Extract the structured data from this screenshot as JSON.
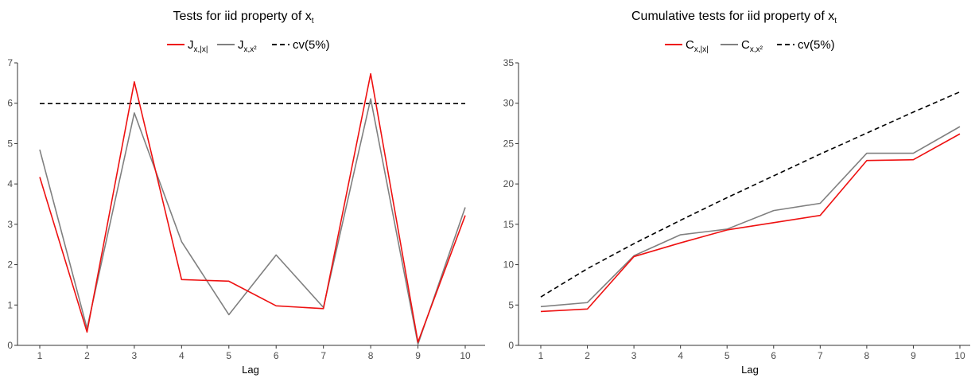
{
  "colors": {
    "series_1": "#ee1111",
    "series_2": "#808080",
    "cv": "#000000"
  },
  "chart_data": [
    {
      "type": "line",
      "title_main": "Tests for iid property of x",
      "title_sub": "t",
      "xlabel": "Lag",
      "ylabel": "",
      "x": [
        1,
        2,
        3,
        4,
        5,
        6,
        7,
        8,
        9,
        10
      ],
      "xlim": [
        1,
        10
      ],
      "ylim": [
        0,
        7
      ],
      "yticks": [
        0,
        1,
        2,
        3,
        4,
        5,
        6,
        7
      ],
      "grid": false,
      "legend_position": "top",
      "series": [
        {
          "name_main": "J",
          "name_sub": "x,|x|",
          "values": [
            4.17,
            0.33,
            6.53,
            1.63,
            1.59,
            0.98,
            0.91,
            6.73,
            0.08,
            3.22
          ]
        },
        {
          "name_main": "J",
          "name_sub": "x,x²",
          "values": [
            4.85,
            0.42,
            5.76,
            2.57,
            0.76,
            2.24,
            0.94,
            6.11,
            0.03,
            3.42
          ]
        },
        {
          "name_main": "cv(5%)",
          "name_sub": "",
          "values": [
            5.99,
            5.99,
            5.99,
            5.99,
            5.99,
            5.99,
            5.99,
            5.99,
            5.99,
            5.99
          ]
        }
      ]
    },
    {
      "type": "line",
      "title_main": "Cumulative tests for iid property of x",
      "title_sub": "t",
      "xlabel": "Lag",
      "ylabel": "",
      "x": [
        1,
        2,
        3,
        4,
        5,
        6,
        7,
        8,
        9,
        10
      ],
      "xlim": [
        1,
        10
      ],
      "ylim": [
        0,
        35
      ],
      "yticks": [
        0,
        5,
        10,
        15,
        20,
        25,
        30,
        35
      ],
      "grid": false,
      "legend_position": "top",
      "series": [
        {
          "name_main": "C",
          "name_sub": "x,|x|",
          "values": [
            4.2,
            4.5,
            11.0,
            12.7,
            14.3,
            15.2,
            16.1,
            22.9,
            23.0,
            26.2
          ]
        },
        {
          "name_main": "C",
          "name_sub": "x,x²",
          "values": [
            4.8,
            5.3,
            11.1,
            13.7,
            14.4,
            16.7,
            17.6,
            23.8,
            23.8,
            27.1
          ]
        },
        {
          "name_main": "cv(5%)",
          "name_sub": "",
          "values": [
            6.0,
            9.5,
            12.6,
            15.5,
            18.3,
            21.0,
            23.7,
            26.3,
            28.9,
            31.4
          ]
        }
      ]
    }
  ]
}
